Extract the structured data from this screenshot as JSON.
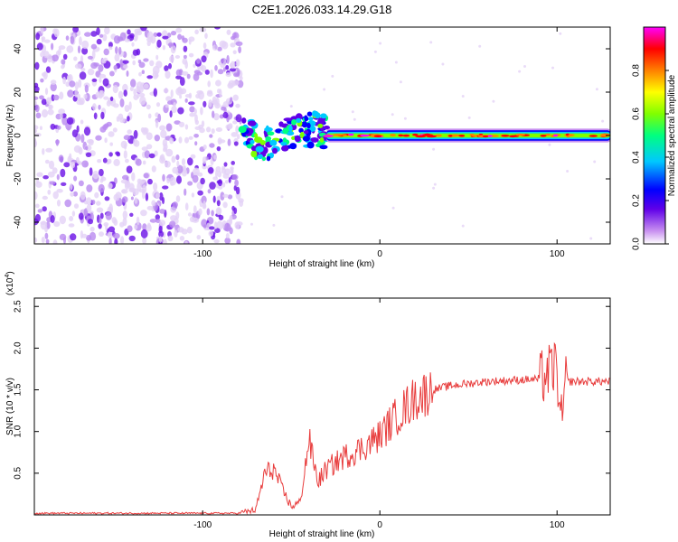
{
  "title": "C2E1.2026.033.14.29.G18",
  "chart_data": [
    {
      "type": "heatmap",
      "name": "spectrogram",
      "xlabel": "Height of straight line (km)",
      "ylabel": "Frequency (Hz)",
      "xlim": [
        -195,
        130
      ],
      "ylim": [
        -50,
        50
      ],
      "xticks": [
        -100,
        0,
        100
      ],
      "yticks": [
        -40,
        -20,
        0,
        20,
        40
      ],
      "colorbar": {
        "label": "Normalized spectral amplitude",
        "range": [
          0,
          1
        ],
        "ticks": [
          "0.0",
          "0.2",
          "0.4",
          "0.6",
          "0.8"
        ],
        "tick_values": [
          0.0,
          0.2,
          0.4,
          0.6,
          0.8
        ],
        "colors": [
          "#ffffff",
          "#c890f0",
          "#6000e8",
          "#0000ff",
          "#00c8ff",
          "#00ff80",
          "#80ff00",
          "#ffff00",
          "#ff8000",
          "#ff0000",
          "#ff00ff"
        ]
      },
      "regions": [
        {
          "name": "noise",
          "x_range": [
            -195,
            -78
          ],
          "freq_range": [
            -50,
            50
          ],
          "amplitude": 0.05
        },
        {
          "name": "onset",
          "x_range": [
            -78,
            -30
          ],
          "freq_range": [
            -10,
            10
          ],
          "amplitude": 0.3
        },
        {
          "name": "signal",
          "x_range": [
            -30,
            130
          ],
          "center_freq": 0,
          "amplitude": 0.8
        }
      ]
    },
    {
      "type": "line",
      "name": "snr",
      "xlabel": "Height of straight line (km)",
      "ylabel": "SNR (10 * v/v)",
      "scale_label": "(x10",
      "scale_exp": "4",
      "xlim": [
        -195,
        130
      ],
      "ylim": [
        0,
        2.6
      ],
      "xticks": [
        -100,
        0,
        100
      ],
      "yticks": [
        0.5,
        1.0,
        1.5,
        2.0,
        2.5
      ],
      "ytick_labels": [
        "0.5",
        "1.0",
        "1.5",
        "2.0",
        "2.5"
      ],
      "color": "#e83c3c",
      "series": [
        {
          "name": "SNR",
          "x": [
            -195,
            -80,
            -70,
            -65,
            -60,
            -55,
            -50,
            -45,
            -40,
            -35,
            -30,
            -20,
            -10,
            0,
            10,
            20,
            30,
            40,
            60,
            80,
            90,
            95,
            100,
            102,
            105,
            110,
            120,
            130
          ],
          "y": [
            0.02,
            0.02,
            0.06,
            0.5,
            0.55,
            0.3,
            0.1,
            0.15,
            0.9,
            0.4,
            0.55,
            0.7,
            0.8,
            0.95,
            1.2,
            1.4,
            1.5,
            1.55,
            1.6,
            1.62,
            1.63,
            1.7,
            1.8,
            1.0,
            1.6,
            1.6,
            1.6,
            1.6
          ]
        }
      ]
    }
  ]
}
